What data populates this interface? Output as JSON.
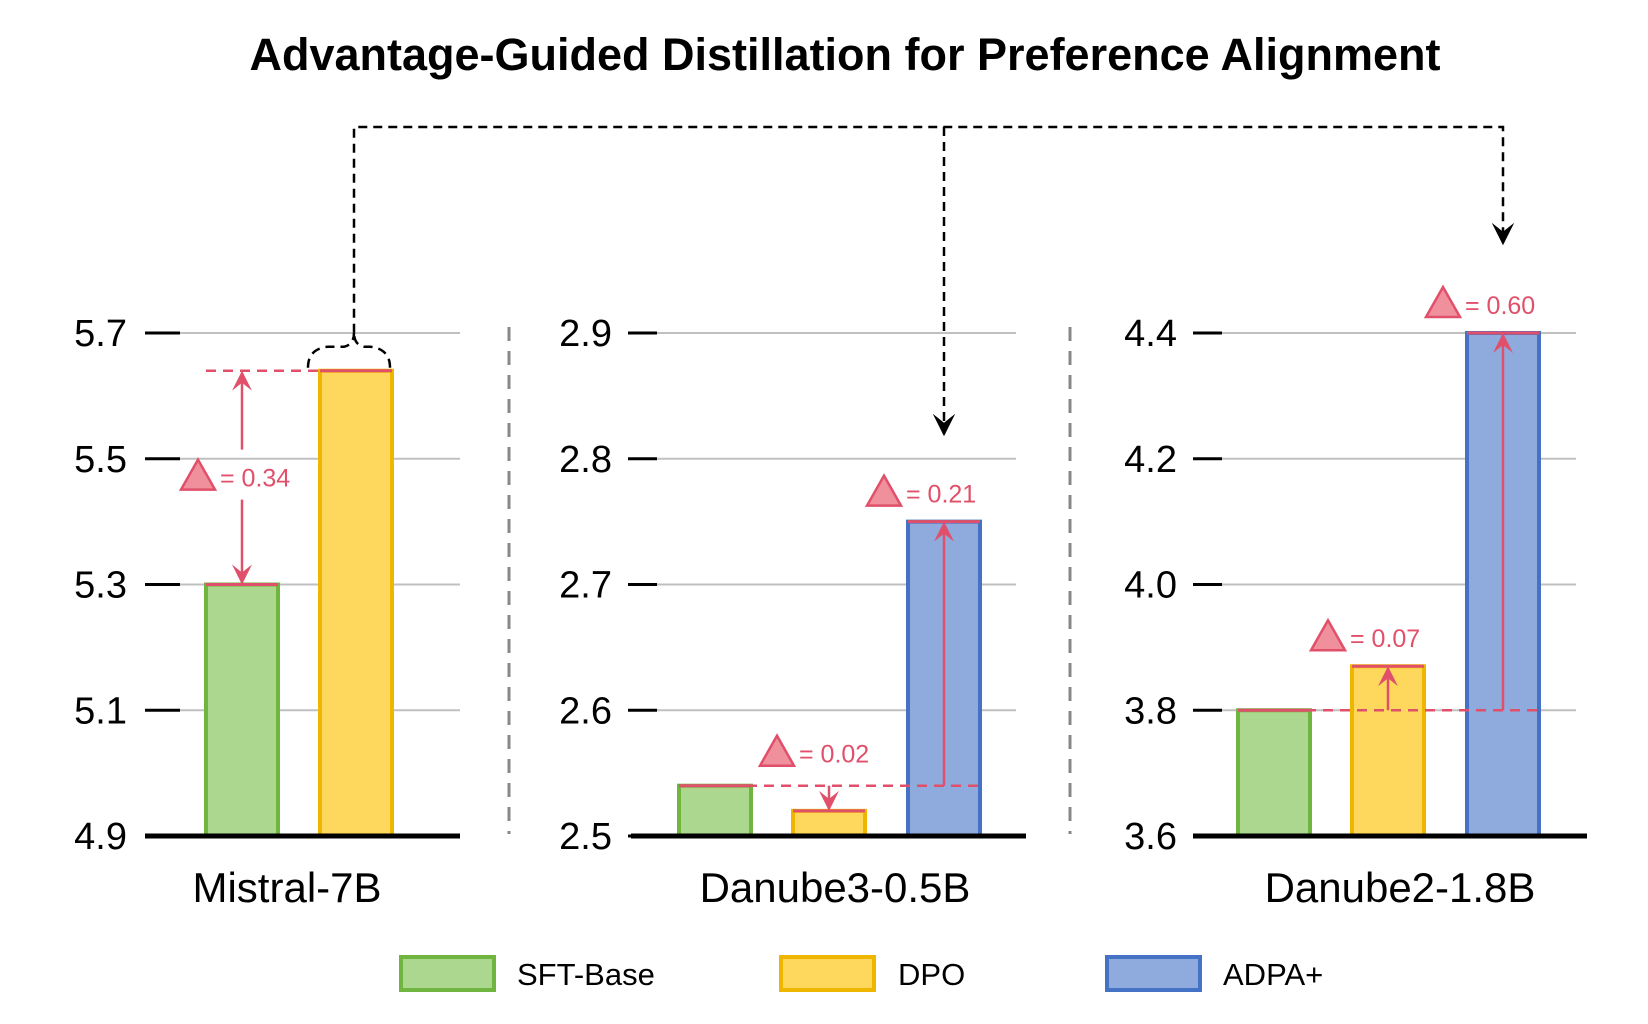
{
  "chart_data": {
    "type": "bar",
    "title": "Advantage-Guided Distillation for Preference Alignment",
    "legend": {
      "placement": "bottom",
      "entries": [
        "SFT-Base",
        "DPO",
        "ADPA+"
      ]
    },
    "colors": {
      "SFT-Base": {
        "fill": "#acd78e",
        "stroke": "#70b53f"
      },
      "DPO": {
        "fill": "#fdd85d",
        "stroke": "#efb600"
      },
      "ADPA+": {
        "fill": "#8faadc",
        "stroke": "#4472c4"
      },
      "annotation": "#e0506a",
      "annotation_fill": "#f0909c",
      "connector": "#000000",
      "separator": "#888888",
      "grid": "#c0c0c0"
    },
    "panels": [
      {
        "category": "Mistral-7B",
        "ylim": [
          4.9,
          5.7
        ],
        "yticks": [
          "4.9",
          "5.1",
          "5.3",
          "5.5",
          "5.7"
        ],
        "series": [
          {
            "name": "SFT-Base",
            "value": 5.3
          },
          {
            "name": "DPO",
            "value": 5.64
          }
        ],
        "annotations": [
          {
            "from": "SFT-Base",
            "to": "DPO",
            "label": "= 0.34"
          }
        ]
      },
      {
        "category": "Danube3-0.5B",
        "ylim": [
          2.5,
          2.9
        ],
        "yticks": [
          "2.5",
          "2.6",
          "2.7",
          "2.8",
          "2.9"
        ],
        "series": [
          {
            "name": "SFT-Base",
            "value": 2.54
          },
          {
            "name": "DPO",
            "value": 2.52
          },
          {
            "name": "ADPA+",
            "value": 2.75
          }
        ],
        "annotations": [
          {
            "from": "SFT-Base",
            "to": "DPO",
            "label": "= 0.02"
          },
          {
            "from": "SFT-Base",
            "to": "ADPA+",
            "label": "= 0.21"
          }
        ]
      },
      {
        "category": "Danube2-1.8B",
        "ylim": [
          3.6,
          4.4
        ],
        "yticks": [
          "3.6",
          "3.8",
          "4.0",
          "4.2",
          "4.4"
        ],
        "series": [
          {
            "name": "SFT-Base",
            "value": 3.8
          },
          {
            "name": "DPO",
            "value": 3.87
          },
          {
            "name": "ADPA+",
            "value": 4.4
          }
        ],
        "annotations": [
          {
            "from": "SFT-Base",
            "to": "DPO",
            "label": "= 0.07"
          },
          {
            "from": "SFT-Base",
            "to": "ADPA+",
            "label": "= 0.60"
          }
        ]
      }
    ]
  }
}
